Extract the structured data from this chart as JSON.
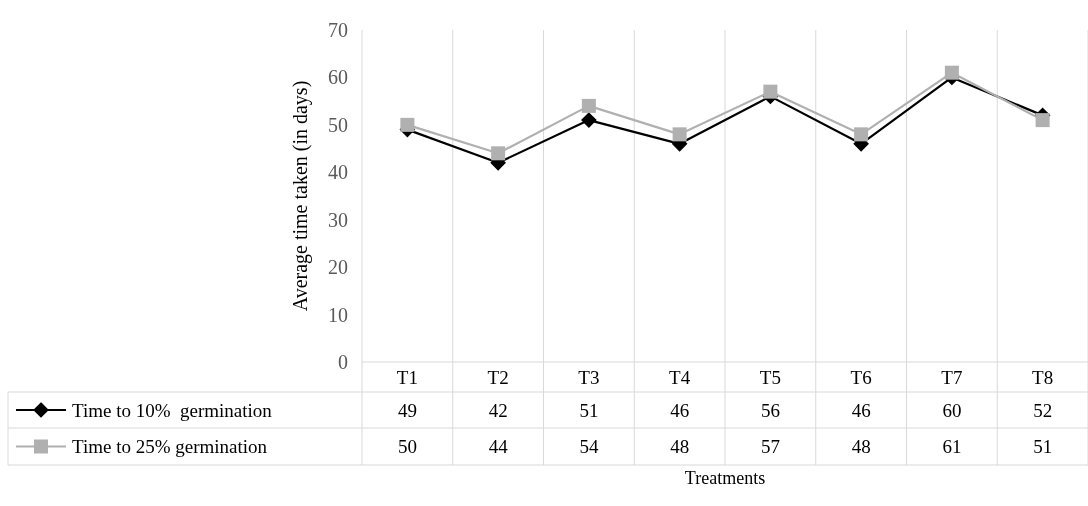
{
  "chart_data": {
    "type": "line",
    "xlabel": "Treatments",
    "ylabel": "Average time taken (in days)",
    "categories": [
      "T1",
      "T2",
      "T3",
      "T4",
      "T5",
      "T6",
      "T7",
      "T8"
    ],
    "series": [
      {
        "name": "Time to 10%  germination",
        "color": "#000000",
        "marker": "diamond",
        "values": [
          49,
          42,
          51,
          46,
          56,
          46,
          60,
          52
        ]
      },
      {
        "name": "Time to 25% germination",
        "color": "#b0b0b0",
        "marker": "square",
        "values": [
          50,
          44,
          54,
          48,
          57,
          48,
          61,
          51
        ]
      }
    ],
    "ylim": [
      0,
      70
    ],
    "yticks": [
      0,
      10,
      20,
      30,
      40,
      50,
      60,
      70
    ],
    "grid": "x",
    "legend": "bottom left",
    "data_labels": true,
    "line_style": "solid"
  }
}
